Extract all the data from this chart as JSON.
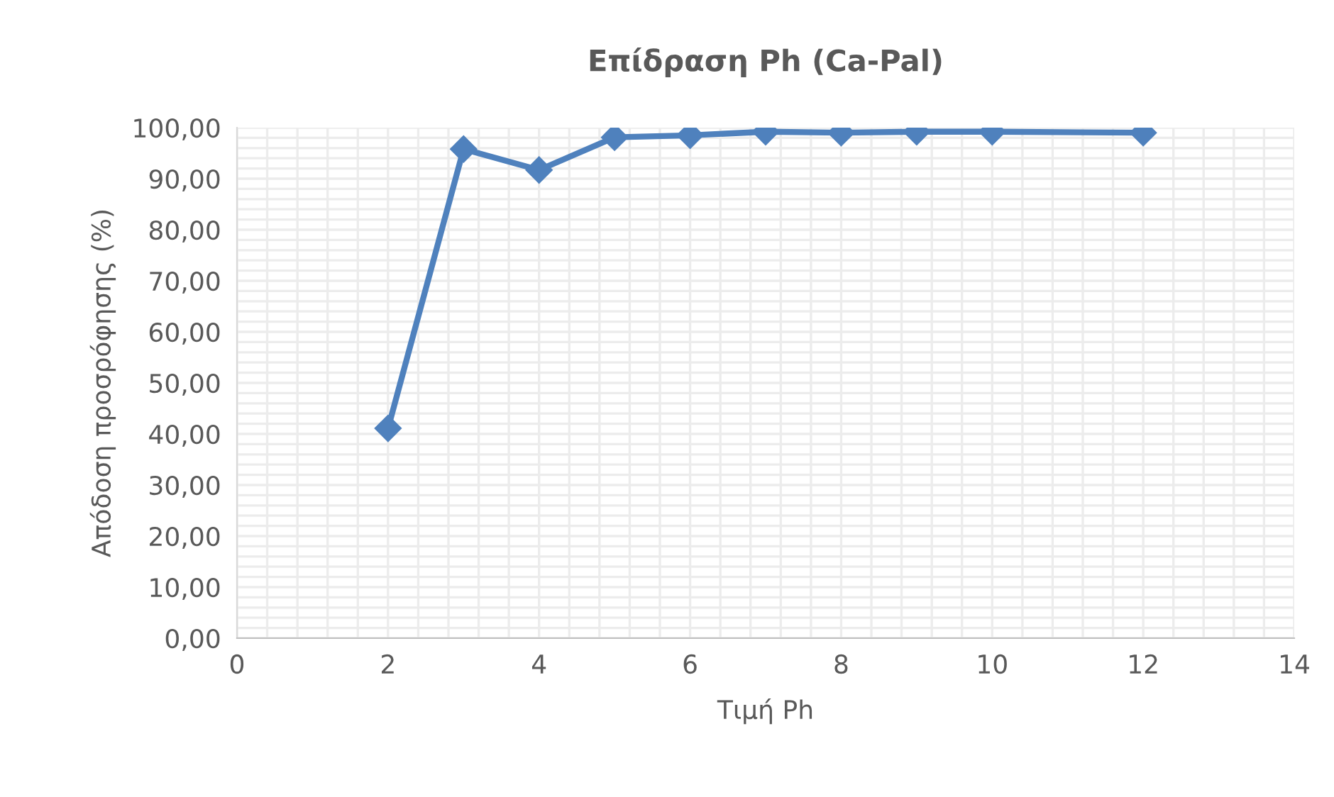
{
  "chart_data": {
    "type": "line",
    "title": "Επίδραση Ph (Ca-Pal)",
    "xlabel": "Τιμή Ph",
    "ylabel": "Απόδοση προσρόφησης (%)",
    "x": [
      2,
      3,
      4,
      5,
      6,
      7,
      8,
      9,
      10,
      12
    ],
    "series": [
      {
        "color": "#4f81bd",
        "values": [
          41.1,
          95.8,
          91.7,
          98.1,
          98.5,
          99.2,
          99.0,
          99.2,
          99.2,
          99.0
        ]
      }
    ],
    "xlim": [
      0,
      14
    ],
    "xticks": [
      0,
      2,
      4,
      6,
      8,
      10,
      12,
      14
    ],
    "ylim": [
      0,
      100
    ],
    "yticks": [
      {
        "value": 0,
        "label": "0,00"
      },
      {
        "value": 10,
        "label": "10,00"
      },
      {
        "value": 20,
        "label": "20,00"
      },
      {
        "value": 30,
        "label": "30,00"
      },
      {
        "value": 40,
        "label": "40,00"
      },
      {
        "value": 50,
        "label": "50,00"
      },
      {
        "value": 60,
        "label": "60,00"
      },
      {
        "value": 70,
        "label": "70,00"
      },
      {
        "value": 80,
        "label": "80,00"
      },
      {
        "value": 90,
        "label": "90,00"
      },
      {
        "value": 100,
        "label": "100,00"
      }
    ],
    "grid": true,
    "marker": "diamond",
    "line_style": "solid"
  }
}
